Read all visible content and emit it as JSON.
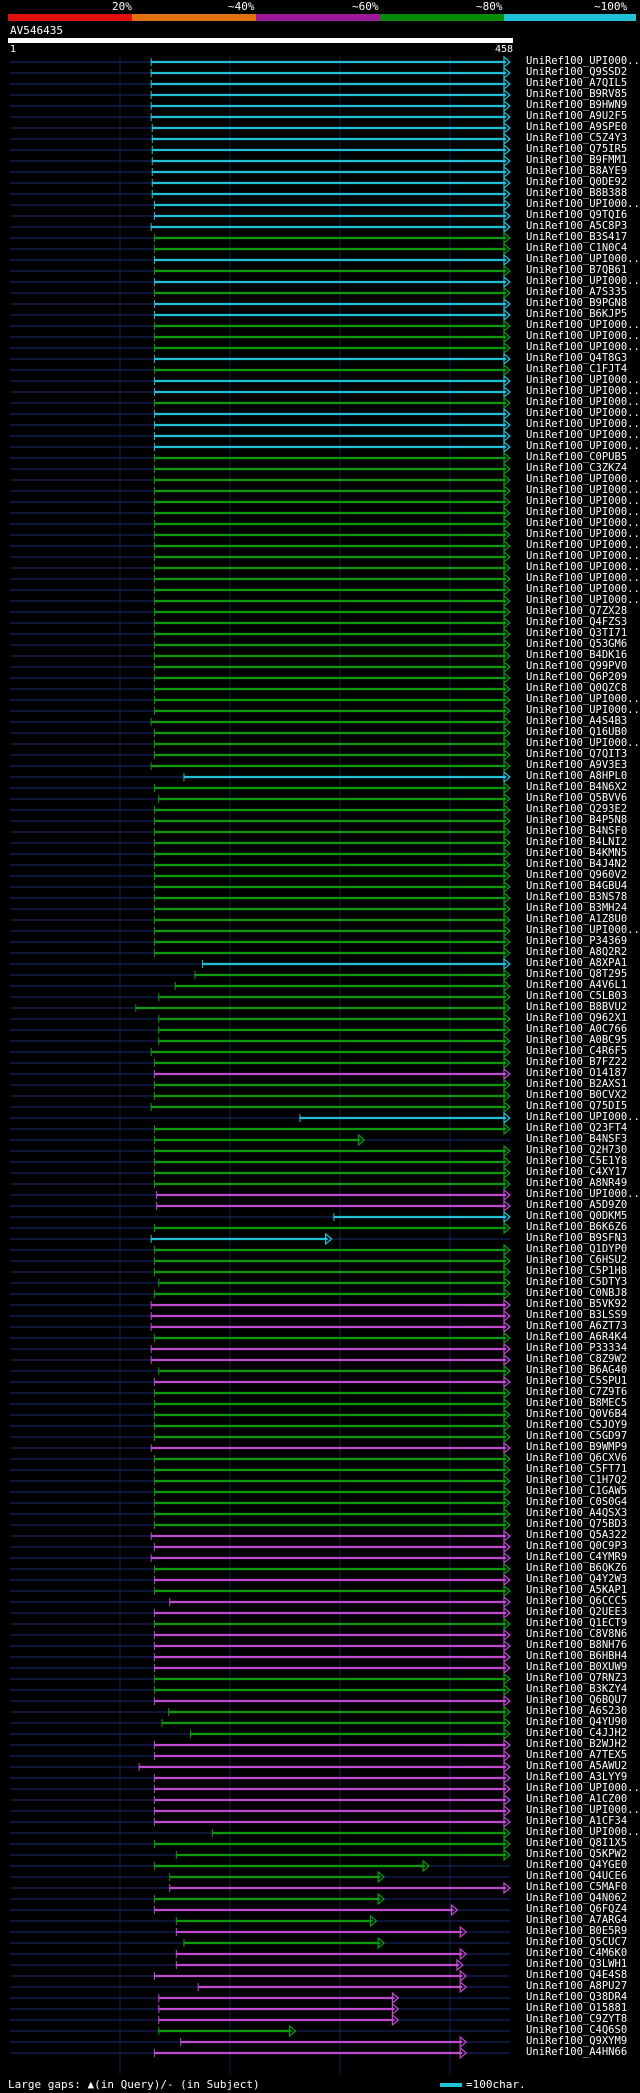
{
  "scale": {
    "labels": [
      "20%",
      "~40%",
      "~60%",
      "~80%",
      "~100%"
    ],
    "colors": [
      "#e01010",
      "#e07010",
      "#9a1a9a",
      "#0a8a0a",
      "#1fc1d6"
    ]
  },
  "query": {
    "accession": "AV546435",
    "start": "1",
    "end": "458"
  },
  "axis_span": [
    1,
    458
  ],
  "legend": {
    "gaps": "Large gaps: ▲(in Query)/- (in Subject)",
    "scale": "=100char."
  },
  "hits": [
    {
      "label": "UniRef100_UPI000...",
      "s": 130,
      "e": 458,
      "c": "cyan"
    },
    {
      "label": "UniRef100_Q9SSD2",
      "s": 130,
      "e": 458,
      "c": "cyan"
    },
    {
      "label": "UniRef100_A7QIL5",
      "s": 130,
      "e": 458,
      "c": "cyan"
    },
    {
      "label": "UniRef100_B9RV85",
      "s": 130,
      "e": 458,
      "c": "cyan"
    },
    {
      "label": "UniRef100_B9HWN9",
      "s": 130,
      "e": 458,
      "c": "cyan"
    },
    {
      "label": "UniRef100_A9U2F5",
      "s": 130,
      "e": 458,
      "c": "cyan"
    },
    {
      "label": "UniRef100_A9SPE0",
      "s": 131,
      "e": 458,
      "c": "cyan"
    },
    {
      "label": "UniRef100_C5Z4Y3",
      "s": 131,
      "e": 458,
      "c": "cyan"
    },
    {
      "label": "UniRef100_Q75IR5",
      "s": 131,
      "e": 458,
      "c": "cyan"
    },
    {
      "label": "UniRef100_B9FMM1",
      "s": 131,
      "e": 458,
      "c": "cyan"
    },
    {
      "label": "UniRef100_B8AYE9",
      "s": 131,
      "e": 458,
      "c": "cyan"
    },
    {
      "label": "UniRef100_Q0DE92",
      "s": 131,
      "e": 458,
      "c": "cyan"
    },
    {
      "label": "UniRef100_B8B388",
      "s": 131,
      "e": 458,
      "c": "cyan"
    },
    {
      "label": "UniRef100_UPI000...",
      "s": 133,
      "e": 458,
      "c": "cyan"
    },
    {
      "label": "UniRef100_Q9TQI6",
      "s": 133,
      "e": 458,
      "c": "cyan"
    },
    {
      "label": "UniRef100_A5C8P3",
      "s": 130,
      "e": 458,
      "c": "cyan"
    },
    {
      "label": "UniRef100_B3S417",
      "s": 133,
      "e": 458,
      "c": "green"
    },
    {
      "label": "UniRef100_C1N0C4",
      "s": 133,
      "e": 458,
      "c": "green"
    },
    {
      "label": "UniRef100_UPI000...",
      "s": 133,
      "e": 458,
      "c": "cyan"
    },
    {
      "label": "UniRef100_B7QB61",
      "s": 133,
      "e": 458,
      "c": "green"
    },
    {
      "label": "UniRef100_UPI000...",
      "s": 133,
      "e": 458,
      "c": "cyan"
    },
    {
      "label": "UniRef100_A7S335",
      "s": 133,
      "e": 458,
      "c": "green"
    },
    {
      "label": "UniRef100_B9PGN8",
      "s": 133,
      "e": 458,
      "c": "cyan"
    },
    {
      "label": "UniRef100_B6KJP5",
      "s": 133,
      "e": 458,
      "c": "cyan"
    },
    {
      "label": "UniRef100_UPI000...",
      "s": 133,
      "e": 458,
      "c": "green"
    },
    {
      "label": "UniRef100_UPI000...",
      "s": 133,
      "e": 458,
      "c": "green"
    },
    {
      "label": "UniRef100_UPI000...",
      "s": 133,
      "e": 458,
      "c": "green"
    },
    {
      "label": "UniRef100_Q4T8G3",
      "s": 133,
      "e": 458,
      "c": "cyan"
    },
    {
      "label": "UniRef100_C1FJT4",
      "s": 133,
      "e": 458,
      "c": "green"
    },
    {
      "label": "UniRef100_UPI000...",
      "s": 133,
      "e": 458,
      "c": "cyan"
    },
    {
      "label": "UniRef100_UPI000...",
      "s": 133,
      "e": 458,
      "c": "cyan"
    },
    {
      "label": "UniRef100_UPI000...",
      "s": 133,
      "e": 458,
      "c": "green"
    },
    {
      "label": "UniRef100_UPI000...",
      "s": 133,
      "e": 458,
      "c": "cyan"
    },
    {
      "label": "UniRef100_UPI000...",
      "s": 133,
      "e": 458,
      "c": "cyan"
    },
    {
      "label": "UniRef100_UPI000...",
      "s": 133,
      "e": 458,
      "c": "cyan"
    },
    {
      "label": "UniRef100_UPI000...",
      "s": 133,
      "e": 458,
      "c": "cyan"
    },
    {
      "label": "UniRef100_C0PUB5",
      "s": 133,
      "e": 458,
      "c": "green"
    },
    {
      "label": "UniRef100_C3ZKZ4",
      "s": 133,
      "e": 458,
      "c": "green"
    },
    {
      "label": "UniRef100_UPI000...",
      "s": 133,
      "e": 458,
      "c": "green"
    },
    {
      "label": "UniRef100_UPI000...",
      "s": 133,
      "e": 458,
      "c": "green"
    },
    {
      "label": "UniRef100_UPI000...",
      "s": 133,
      "e": 458,
      "c": "green"
    },
    {
      "label": "UniRef100_UPI000...",
      "s": 133,
      "e": 458,
      "c": "green"
    },
    {
      "label": "UniRef100_UPI000...",
      "s": 133,
      "e": 458,
      "c": "green"
    },
    {
      "label": "UniRef100_UPI000...",
      "s": 133,
      "e": 458,
      "c": "green"
    },
    {
      "label": "UniRef100_UPI000...",
      "s": 133,
      "e": 458,
      "c": "green"
    },
    {
      "label": "UniRef100_UPI000...",
      "s": 133,
      "e": 458,
      "c": "green"
    },
    {
      "label": "UniRef100_UPI000...",
      "s": 133,
      "e": 458,
      "c": "green"
    },
    {
      "label": "UniRef100_UPI000...",
      "s": 133,
      "e": 458,
      "c": "green"
    },
    {
      "label": "UniRef100_UPI000...",
      "s": 133,
      "e": 458,
      "c": "green"
    },
    {
      "label": "UniRef100_UPI000...",
      "s": 133,
      "e": 458,
      "c": "green"
    },
    {
      "label": "UniRef100_Q7ZX28",
      "s": 133,
      "e": 458,
      "c": "green"
    },
    {
      "label": "UniRef100_Q4FZS3",
      "s": 133,
      "e": 458,
      "c": "green"
    },
    {
      "label": "UniRef100_Q3TI71",
      "s": 133,
      "e": 458,
      "c": "green"
    },
    {
      "label": "UniRef100_Q53GM6",
      "s": 133,
      "e": 458,
      "c": "green"
    },
    {
      "label": "UniRef100_B4DK16",
      "s": 133,
      "e": 458,
      "c": "green"
    },
    {
      "label": "UniRef100_Q99PV0",
      "s": 133,
      "e": 458,
      "c": "green"
    },
    {
      "label": "UniRef100_Q6P209",
      "s": 133,
      "e": 458,
      "c": "green"
    },
    {
      "label": "UniRef100_Q0QZC8",
      "s": 133,
      "e": 458,
      "c": "green"
    },
    {
      "label": "UniRef100_UPI000...",
      "s": 133,
      "e": 458,
      "c": "green"
    },
    {
      "label": "UniRef100_UPI000...",
      "s": 133,
      "e": 458,
      "c": "green"
    },
    {
      "label": "UniRef100_A4S4B3",
      "s": 130,
      "e": 458,
      "c": "green"
    },
    {
      "label": "UniRef100_Q16UB0",
      "s": 133,
      "e": 458,
      "c": "green"
    },
    {
      "label": "UniRef100_UPI000...",
      "s": 133,
      "e": 458,
      "c": "green"
    },
    {
      "label": "UniRef100_Q7QIT3",
      "s": 133,
      "e": 458,
      "c": "green"
    },
    {
      "label": "UniRef100_A9V3E3",
      "s": 130,
      "e": 458,
      "c": "green"
    },
    {
      "label": "UniRef100_A8HPL0",
      "s": 160,
      "e": 458,
      "c": "cyan"
    },
    {
      "label": "UniRef100_B4N6X2",
      "s": 133,
      "e": 458,
      "c": "green"
    },
    {
      "label": "UniRef100_Q5BVV6",
      "s": 137,
      "e": 458,
      "c": "green"
    },
    {
      "label": "UniRef100_Q293E2",
      "s": 133,
      "e": 458,
      "c": "green"
    },
    {
      "label": "UniRef100_B4P5N8",
      "s": 133,
      "e": 458,
      "c": "green"
    },
    {
      "label": "UniRef100_B4NSF0",
      "s": 133,
      "e": 458,
      "c": "green"
    },
    {
      "label": "UniRef100_B4LNI2",
      "s": 133,
      "e": 458,
      "c": "green"
    },
    {
      "label": "UniRef100_B4KMN5",
      "s": 133,
      "e": 458,
      "c": "green"
    },
    {
      "label": "UniRef100_B4J4N2",
      "s": 133,
      "e": 458,
      "c": "green"
    },
    {
      "label": "UniRef100_Q960V2",
      "s": 133,
      "e": 458,
      "c": "green"
    },
    {
      "label": "UniRef100_B4GBU4",
      "s": 133,
      "e": 458,
      "c": "green"
    },
    {
      "label": "UniRef100_B3NS78",
      "s": 133,
      "e": 458,
      "c": "green"
    },
    {
      "label": "UniRef100_B3MH24",
      "s": 133,
      "e": 458,
      "c": "green"
    },
    {
      "label": "UniRef100_A1Z8U0",
      "s": 133,
      "e": 458,
      "c": "green"
    },
    {
      "label": "UniRef100_UPI000...",
      "s": 133,
      "e": 458,
      "c": "green"
    },
    {
      "label": "UniRef100_P34369",
      "s": 133,
      "e": 458,
      "c": "green"
    },
    {
      "label": "UniRef100_A8Q2R2",
      "s": 133,
      "e": 458,
      "c": "green"
    },
    {
      "label": "UniRef100_A8XPA1",
      "s": 177,
      "e": 458,
      "c": "cyan"
    },
    {
      "label": "UniRef100_Q8T295",
      "s": 170,
      "e": 458,
      "c": "green"
    },
    {
      "label": "UniRef100_A4V6L1",
      "s": 152,
      "e": 458,
      "c": "green"
    },
    {
      "label": "UniRef100_C5LB03",
      "s": 137,
      "e": 458,
      "c": "green"
    },
    {
      "label": "UniRef100_B8BVU2",
      "s": 116,
      "e": 458,
      "c": "green"
    },
    {
      "label": "UniRef100_Q962X1",
      "s": 137,
      "e": 458,
      "c": "green"
    },
    {
      "label": "UniRef100_A0C766",
      "s": 137,
      "e": 458,
      "c": "green"
    },
    {
      "label": "UniRef100_A0BC95",
      "s": 137,
      "e": 458,
      "c": "green"
    },
    {
      "label": "UniRef100_C4R6F5",
      "s": 130,
      "e": 458,
      "c": "green"
    },
    {
      "label": "UniRef100_B7FZ22",
      "s": 133,
      "e": 458,
      "c": "green"
    },
    {
      "label": "UniRef100_O14187",
      "s": 133,
      "e": 458,
      "c": "magenta"
    },
    {
      "label": "UniRef100_B2AXS1",
      "s": 133,
      "e": 458,
      "c": "green"
    },
    {
      "label": "UniRef100_B0CVX2",
      "s": 133,
      "e": 458,
      "c": "green"
    },
    {
      "label": "UniRef100_Q75DI5",
      "s": 130,
      "e": 458,
      "c": "green"
    },
    {
      "label": "UniRef100_UPI000...",
      "s": 266,
      "e": 458,
      "c": "cyan"
    },
    {
      "label": "UniRef100_Q23FT4",
      "s": 133,
      "e": 458,
      "c": "green"
    },
    {
      "label": "UniRef100_B4NSF3",
      "s": 133,
      "e": 325,
      "c": "green"
    },
    {
      "label": "UniRef100_Q2H730",
      "s": 133,
      "e": 458,
      "c": "green"
    },
    {
      "label": "UniRef100_C5E1Y8",
      "s": 133,
      "e": 458,
      "c": "green"
    },
    {
      "label": "UniRef100_C4XY17",
      "s": 133,
      "e": 458,
      "c": "green"
    },
    {
      "label": "UniRef100_A8NR49",
      "s": 133,
      "e": 458,
      "c": "green"
    },
    {
      "label": "UniRef100_UPI000...",
      "s": 135,
      "e": 458,
      "c": "magenta"
    },
    {
      "label": "UniRef100_A5D9Z0",
      "s": 135,
      "e": 458,
      "c": "magenta"
    },
    {
      "label": "UniRef100_Q0DKM5",
      "s": 297,
      "e": 458,
      "c": "cyan"
    },
    {
      "label": "UniRef100_B6K6Z6",
      "s": 133,
      "e": 458,
      "c": "green"
    },
    {
      "label": "UniRef100_B9SFN3",
      "s": 130,
      "e": 295,
      "c": "cyan"
    },
    {
      "label": "UniRef100_Q1DYP0",
      "s": 133,
      "e": 458,
      "c": "green"
    },
    {
      "label": "UniRef100_C6HSU2",
      "s": 133,
      "e": 458,
      "c": "green"
    },
    {
      "label": "UniRef100_C5P1H8",
      "s": 133,
      "e": 458,
      "c": "green"
    },
    {
      "label": "UniRef100_C5DTY3",
      "s": 137,
      "e": 458,
      "c": "green"
    },
    {
      "label": "UniRef100_C0NBJ8",
      "s": 133,
      "e": 458,
      "c": "green"
    },
    {
      "label": "UniRef100_B5VK92",
      "s": 130,
      "e": 458,
      "c": "magenta"
    },
    {
      "label": "UniRef100_B3LSS9",
      "s": 130,
      "e": 458,
      "c": "magenta"
    },
    {
      "label": "UniRef100_A6ZT73",
      "s": 130,
      "e": 458,
      "c": "magenta"
    },
    {
      "label": "UniRef100_A6R4K4",
      "s": 133,
      "e": 458,
      "c": "green"
    },
    {
      "label": "UniRef100_P33334",
      "s": 130,
      "e": 458,
      "c": "magenta"
    },
    {
      "label": "UniRef100_C8Z9W2",
      "s": 130,
      "e": 458,
      "c": "magenta"
    },
    {
      "label": "UniRef100_B6AG40",
      "s": 137,
      "e": 458,
      "c": "green"
    },
    {
      "label": "UniRef100_C5SPU1",
      "s": 133,
      "e": 458,
      "c": "magenta"
    },
    {
      "label": "UniRef100_C7Z9T6",
      "s": 133,
      "e": 458,
      "c": "green"
    },
    {
      "label": "UniRef100_B8MEC5",
      "s": 133,
      "e": 458,
      "c": "green"
    },
    {
      "label": "UniRef100_Q0V6B4",
      "s": 133,
      "e": 458,
      "c": "green"
    },
    {
      "label": "UniRef100_C5JOY9",
      "s": 133,
      "e": 458,
      "c": "green"
    },
    {
      "label": "UniRef100_C5GD97",
      "s": 133,
      "e": 458,
      "c": "green"
    },
    {
      "label": "UniRef100_B9WMP9",
      "s": 130,
      "e": 458,
      "c": "magenta"
    },
    {
      "label": "UniRef100_Q6CXV6",
      "s": 133,
      "e": 458,
      "c": "green"
    },
    {
      "label": "UniRef100_C5FT71",
      "s": 133,
      "e": 458,
      "c": "green"
    },
    {
      "label": "UniRef100_C1H7Q2",
      "s": 133,
      "e": 458,
      "c": "green"
    },
    {
      "label": "UniRef100_C1GAW5",
      "s": 133,
      "e": 458,
      "c": "green"
    },
    {
      "label": "UniRef100_C0S0G4",
      "s": 133,
      "e": 458,
      "c": "green"
    },
    {
      "label": "UniRef100_A4QSX3",
      "s": 133,
      "e": 458,
      "c": "green"
    },
    {
      "label": "UniRef100_Q75BD3",
      "s": 133,
      "e": 458,
      "c": "green"
    },
    {
      "label": "UniRef100_Q5A322",
      "s": 130,
      "e": 458,
      "c": "magenta"
    },
    {
      "label": "UniRef100_Q0C9P3",
      "s": 133,
      "e": 458,
      "c": "magenta"
    },
    {
      "label": "UniRef100_C4YMR9",
      "s": 130,
      "e": 458,
      "c": "magenta"
    },
    {
      "label": "UniRef100_B6QKZ6",
      "s": 133,
      "e": 458,
      "c": "green"
    },
    {
      "label": "UniRef100_Q4Y2W3",
      "s": 133,
      "e": 458,
      "c": "magenta"
    },
    {
      "label": "UniRef100_A5KAP1",
      "s": 133,
      "e": 458,
      "c": "green"
    },
    {
      "label": "UniRef100_Q6CCC5",
      "s": 147,
      "e": 458,
      "c": "magenta"
    },
    {
      "label": "UniRef100_Q2UEE3",
      "s": 133,
      "e": 458,
      "c": "magenta"
    },
    {
      "label": "UniRef100_Q1ECT9",
      "s": 133,
      "e": 458,
      "c": "green"
    },
    {
      "label": "UniRef100_C8V8N6",
      "s": 133,
      "e": 458,
      "c": "magenta"
    },
    {
      "label": "UniRef100_B8NH76",
      "s": 133,
      "e": 458,
      "c": "magenta"
    },
    {
      "label": "UniRef100_B6HBH4",
      "s": 133,
      "e": 458,
      "c": "magenta"
    },
    {
      "label": "UniRef100_B0XUW9",
      "s": 133,
      "e": 458,
      "c": "magenta"
    },
    {
      "label": "UniRef100_Q7RNZ3",
      "s": 133,
      "e": 458,
      "c": "green"
    },
    {
      "label": "UniRef100_B3KZY4",
      "s": 133,
      "e": 458,
      "c": "green"
    },
    {
      "label": "UniRef100_Q6BQU7",
      "s": 133,
      "e": 458,
      "c": "magenta"
    },
    {
      "label": "UniRef100_A6S230",
      "s": 146,
      "e": 458,
      "c": "green"
    },
    {
      "label": "UniRef100_Q4YU90",
      "s": 140,
      "e": 458,
      "c": "green"
    },
    {
      "label": "UniRef100_C4JJH2",
      "s": 166,
      "e": 458,
      "c": "green"
    },
    {
      "label": "UniRef100_B2WJH2",
      "s": 133,
      "e": 458,
      "c": "magenta"
    },
    {
      "label": "UniRef100_A7TEX5",
      "s": 133,
      "e": 458,
      "c": "magenta"
    },
    {
      "label": "UniRef100_A5AWU2",
      "s": 119,
      "e": 458,
      "c": "magenta"
    },
    {
      "label": "UniRef100_A3LYY9",
      "s": 133,
      "e": 458,
      "c": "magenta"
    },
    {
      "label": "UniRef100_UPI000...",
      "s": 133,
      "e": 458,
      "c": "magenta"
    },
    {
      "label": "UniRef100_A1CZ00",
      "s": 133,
      "e": 458,
      "c": "magenta"
    },
    {
      "label": "UniRef100_UPI000...",
      "s": 133,
      "e": 458,
      "c": "magenta"
    },
    {
      "label": "UniRef100_A1CF34",
      "s": 133,
      "e": 458,
      "c": "magenta"
    },
    {
      "label": "UniRef100_UPI000...",
      "s": 186,
      "e": 458,
      "c": "green"
    },
    {
      "label": "UniRef100_Q8I1X5",
      "s": 133,
      "e": 458,
      "c": "green"
    },
    {
      "label": "UniRef100_Q5KPW2",
      "s": 153,
      "e": 458,
      "c": "green"
    },
    {
      "label": "UniRef100_Q4YGE0",
      "s": 133,
      "e": 384,
      "c": "green"
    },
    {
      "label": "UniRef100_Q4UCE6",
      "s": 147,
      "e": 343,
      "c": "green"
    },
    {
      "label": "UniRef100_C5MAF0",
      "s": 147,
      "e": 458,
      "c": "magenta"
    },
    {
      "label": "UniRef100_Q4N062",
      "s": 133,
      "e": 343,
      "c": "green"
    },
    {
      "label": "UniRef100_Q6FQZ4",
      "s": 133,
      "e": 410,
      "c": "magenta"
    },
    {
      "label": "UniRef100_A7ARG4",
      "s": 153,
      "e": 336,
      "c": "green"
    },
    {
      "label": "UniRef100_B0E5R9",
      "s": 153,
      "e": 418,
      "c": "magenta"
    },
    {
      "label": "UniRef100_Q5CUC7",
      "s": 160,
      "e": 343,
      "c": "green"
    },
    {
      "label": "UniRef100_C4M6K0",
      "s": 153,
      "e": 418,
      "c": "magenta"
    },
    {
      "label": "UniRef100_Q3LWH1",
      "s": 153,
      "e": 415,
      "c": "magenta"
    },
    {
      "label": "UniRef100_Q4E4S8",
      "s": 133,
      "e": 418,
      "c": "magenta"
    },
    {
      "label": "UniRef100_A8PU27",
      "s": 173,
      "e": 418,
      "c": "magenta"
    },
    {
      "label": "UniRef100_Q38DR4",
      "s": 137,
      "e": 356,
      "c": "magenta"
    },
    {
      "label": "UniRef100_O15881",
      "s": 137,
      "e": 356,
      "c": "magenta"
    },
    {
      "label": "UniRef100_C9ZYT8",
      "s": 137,
      "e": 356,
      "c": "magenta"
    },
    {
      "label": "UniRef100_C4Q6S0",
      "s": 137,
      "e": 262,
      "c": "green"
    },
    {
      "label": "UniRef100_Q9XYM9",
      "s": 157,
      "e": 418,
      "c": "magenta"
    },
    {
      "label": "UniRef100_A4HN66",
      "s": 133,
      "e": 418,
      "c": "magenta"
    }
  ]
}
